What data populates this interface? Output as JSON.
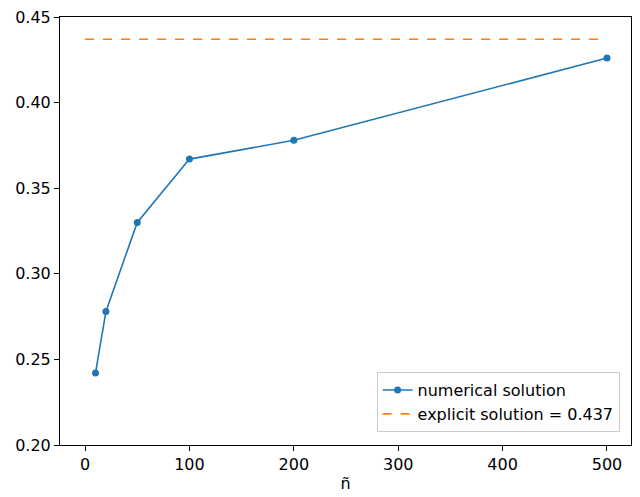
{
  "chart_data": {
    "type": "line",
    "x_label": "ñ",
    "x": [
      10,
      20,
      50,
      100,
      200,
      500
    ],
    "series": [
      {
        "name": "numerical solution",
        "color": "#1f77b4",
        "marker": "circle",
        "line_style": "solid",
        "values": [
          0.242,
          0.278,
          0.33,
          0.367,
          0.378,
          0.426
        ]
      },
      {
        "name": "explicit solution = 0.437",
        "color": "#ff7f0e",
        "line_style": "dashed",
        "x": [
          0,
          500
        ],
        "values": [
          0.437,
          0.437
        ]
      }
    ],
    "xlim": [
      -24,
      523
    ],
    "ylim": [
      0.2,
      0.45
    ],
    "xticks": [
      0,
      100,
      200,
      300,
      400,
      500
    ],
    "yticks": [
      {
        "value": 0.2,
        "label": "0.20"
      },
      0.25,
      {
        "value": 0.3,
        "label": "0.30"
      },
      0.35,
      {
        "value": 0.4,
        "label": "0.40"
      },
      0.45
    ],
    "grid": false,
    "legend": "lower right"
  }
}
